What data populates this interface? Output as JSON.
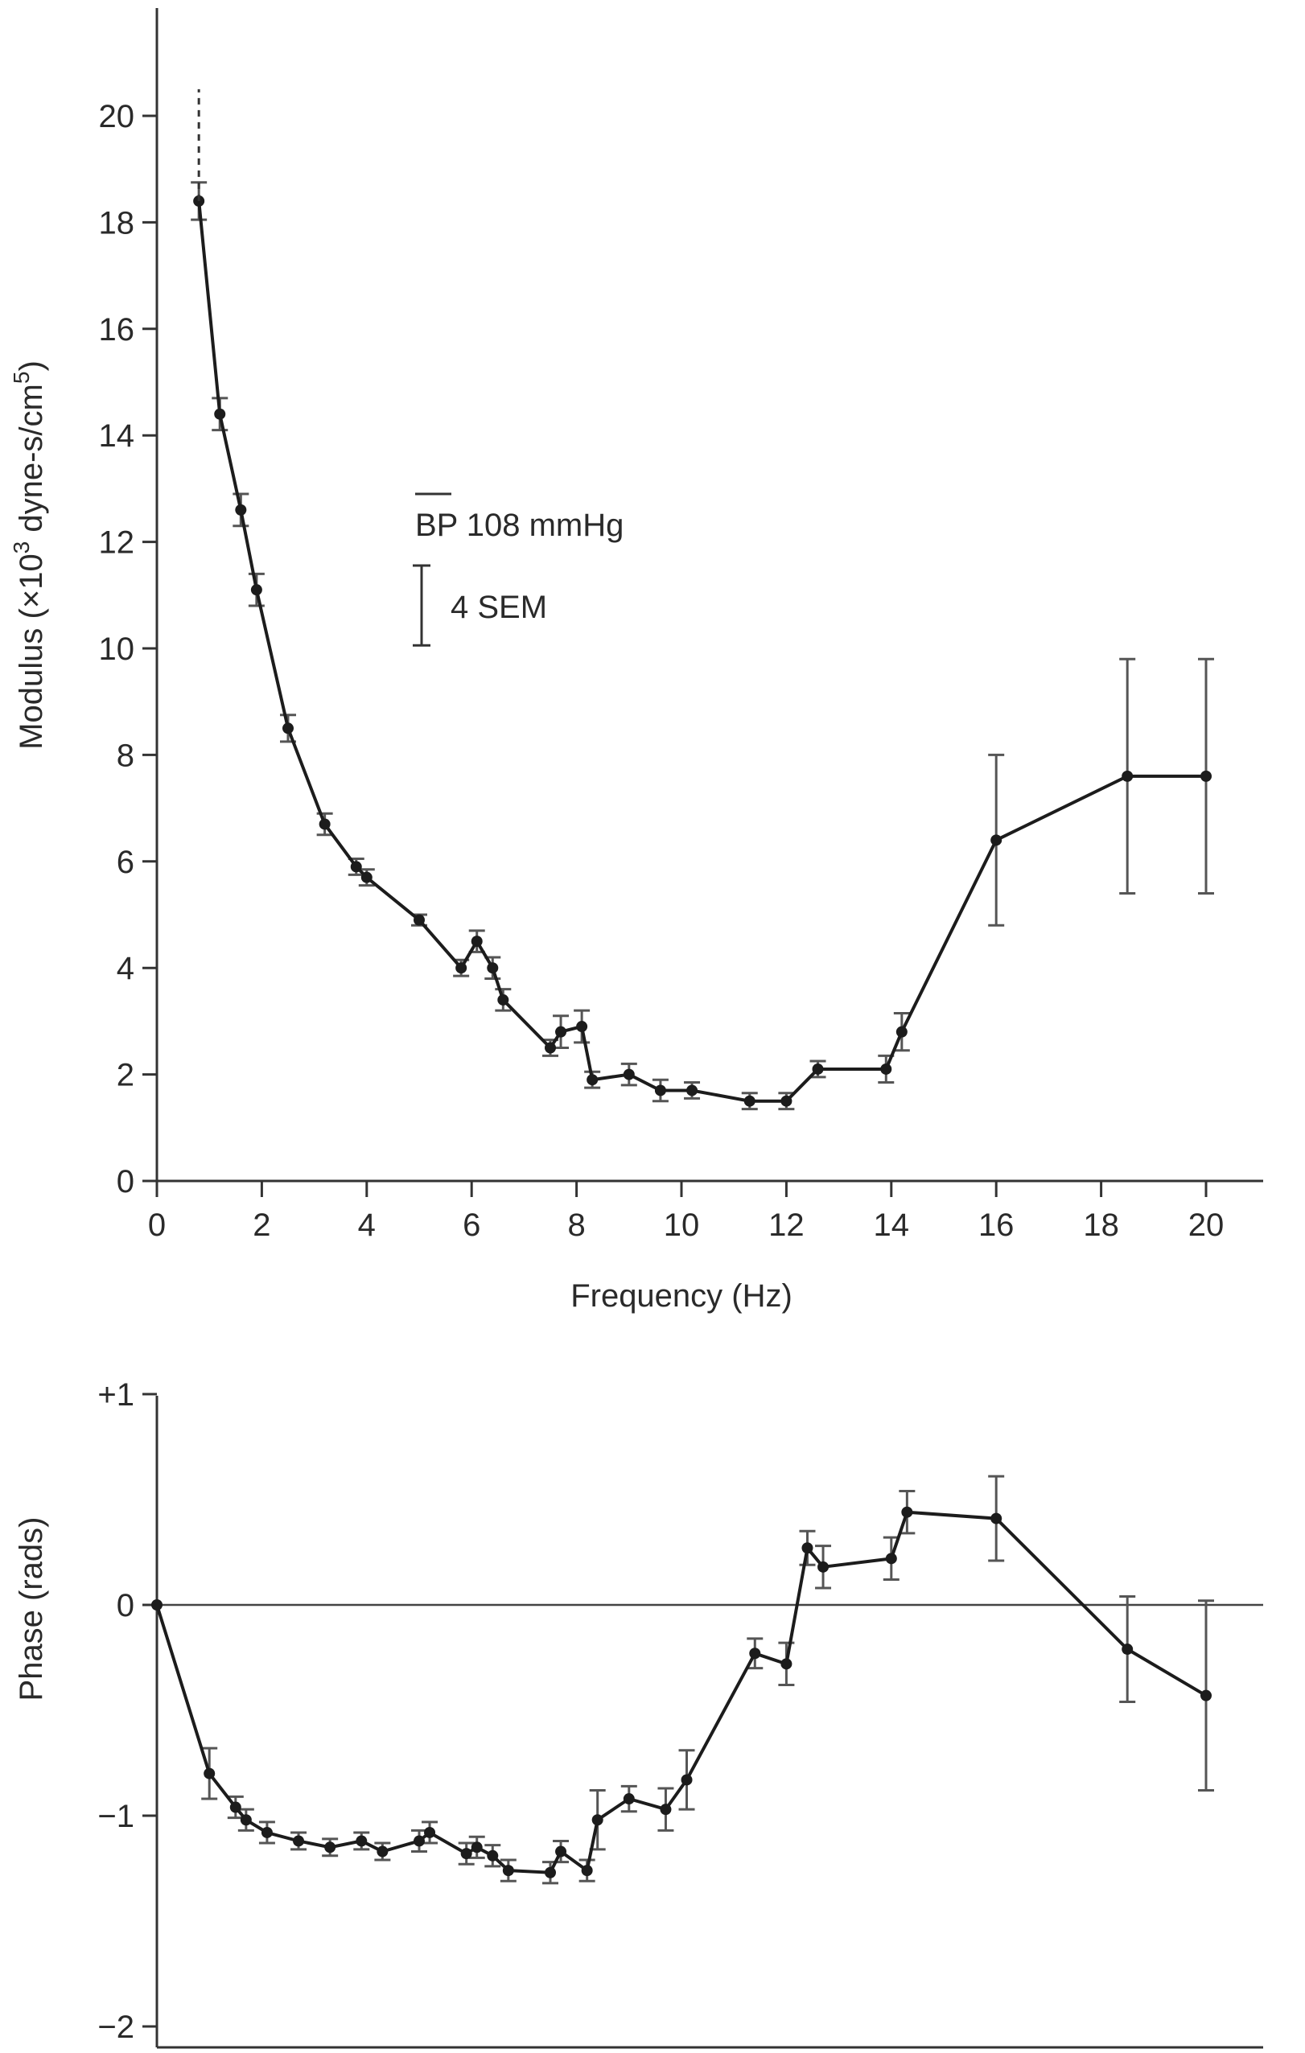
{
  "chart_data": [
    {
      "type": "line",
      "xlabel": "Frequency (Hz)",
      "ylabel": "Modulus (×10",
      "ylabel_sup1": "3",
      "ylabel_mid": " dyne-s/cm",
      "ylabel_sup2": "5",
      "ylabel_end": ")",
      "xlim": [
        0,
        21.5
      ],
      "ylim": [
        0,
        21.5
      ],
      "xticks": [
        "0",
        "2",
        "4",
        "6",
        "8",
        "10",
        "12",
        "14",
        "16",
        "18",
        "20"
      ],
      "yticks": [
        "0",
        "2",
        "4",
        "6",
        "8",
        "10",
        "12",
        "14",
        "16",
        "18",
        "20"
      ],
      "annotation": {
        "bp_bar": "BP",
        "bp_text": " 108 mmHg",
        "sem_label": "4 SEM",
        "sem_scale_bar_value": 1.5
      },
      "upward_extension": {
        "x": 0.8,
        "from": 18.4,
        "to": 20.5
      },
      "series": [
        {
          "x": [
            0.8,
            1.2,
            1.6,
            1.9,
            2.5,
            3.2,
            3.8,
            4.0,
            5.0,
            5.8,
            6.1,
            6.4,
            6.6,
            7.5,
            7.7,
            8.1,
            8.3,
            9.0,
            9.6,
            10.2,
            11.3,
            12.0,
            12.6,
            13.9,
            14.2,
            16.0,
            18.5,
            20.0
          ],
          "y": [
            18.4,
            14.4,
            12.6,
            11.1,
            8.5,
            6.7,
            5.9,
            5.7,
            4.9,
            4.0,
            4.5,
            4.0,
            3.4,
            2.5,
            2.8,
            2.9,
            1.9,
            2.0,
            1.7,
            1.7,
            1.5,
            1.5,
            2.1,
            2.1,
            2.8,
            6.4,
            7.6,
            7.6
          ],
          "err": [
            0.35,
            0.3,
            0.3,
            0.3,
            0.25,
            0.2,
            0.15,
            0.15,
            0.1,
            0.15,
            0.2,
            0.2,
            0.2,
            0.15,
            0.3,
            0.3,
            0.15,
            0.2,
            0.2,
            0.15,
            0.15,
            0.15,
            0.15,
            0.25,
            0.35,
            1.6,
            2.2,
            2.2
          ]
        }
      ]
    },
    {
      "type": "line",
      "ylabel": "Phase (rads)",
      "xlim": [
        0,
        21.5
      ],
      "ylim": [
        -2,
        1
      ],
      "yticks": [
        "+1",
        "0",
        "−1",
        "−2"
      ],
      "ytick_values": [
        1,
        0,
        -1,
        -2
      ],
      "series": [
        {
          "x": [
            0.0,
            1.0,
            1.5,
            1.7,
            2.1,
            2.7,
            3.3,
            3.9,
            4.3,
            5.0,
            5.2,
            5.9,
            6.1,
            6.4,
            6.7,
            7.5,
            7.7,
            8.2,
            8.4,
            9.0,
            9.7,
            10.1,
            11.4,
            12.0,
            12.4,
            12.7,
            14.0,
            14.3,
            16.0,
            18.5,
            20.0
          ],
          "y": [
            0.0,
            -0.8,
            -0.96,
            -1.02,
            -1.08,
            -1.12,
            -1.15,
            -1.12,
            -1.17,
            -1.12,
            -1.08,
            -1.18,
            -1.15,
            -1.19,
            -1.26,
            -1.27,
            -1.17,
            -1.26,
            -1.02,
            -0.92,
            -0.97,
            -0.83,
            -0.23,
            -0.28,
            0.27,
            0.18,
            0.22,
            0.44,
            0.41,
            -0.21,
            -0.43
          ],
          "err": [
            0.0,
            0.12,
            0.05,
            0.05,
            0.05,
            0.04,
            0.04,
            0.04,
            0.04,
            0.05,
            0.05,
            0.05,
            0.05,
            0.05,
            0.05,
            0.05,
            0.05,
            0.05,
            0.14,
            0.06,
            0.1,
            0.14,
            0.07,
            0.1,
            0.08,
            0.1,
            0.1,
            0.1,
            0.2,
            0.25,
            0.45
          ]
        }
      ]
    }
  ]
}
